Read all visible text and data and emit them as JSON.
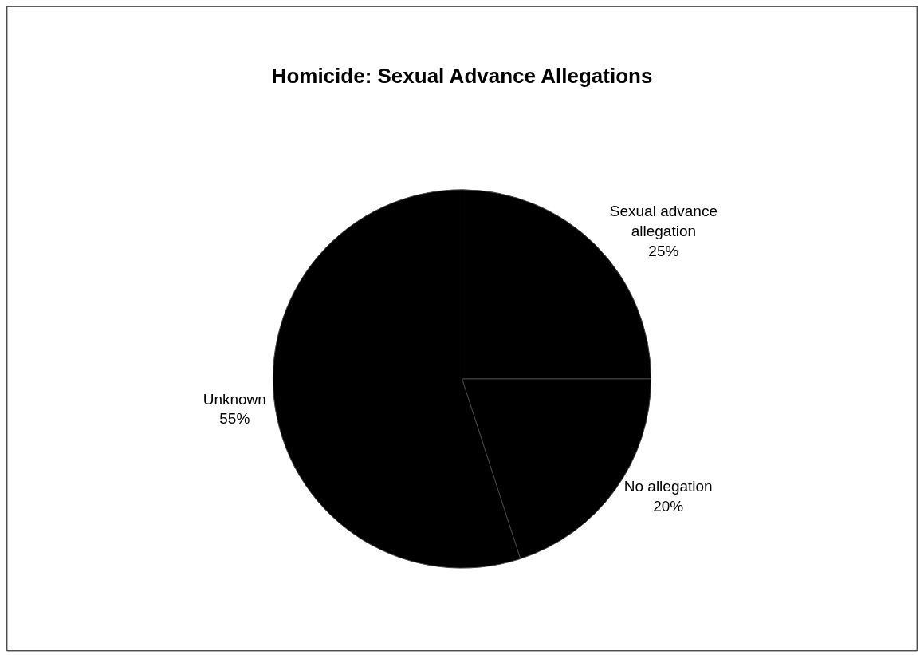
{
  "chart_data": {
    "type": "pie",
    "title": "Homicide: Sexual Advance Allegations",
    "categories": [
      "Sexual advance allegation",
      "No allegation",
      "Unknown"
    ],
    "values": [
      25,
      20,
      55
    ],
    "value_labels": [
      "25%",
      "20%",
      "55%"
    ],
    "colors": [
      "#000000",
      "#000000",
      "#000000"
    ],
    "legend": false
  }
}
